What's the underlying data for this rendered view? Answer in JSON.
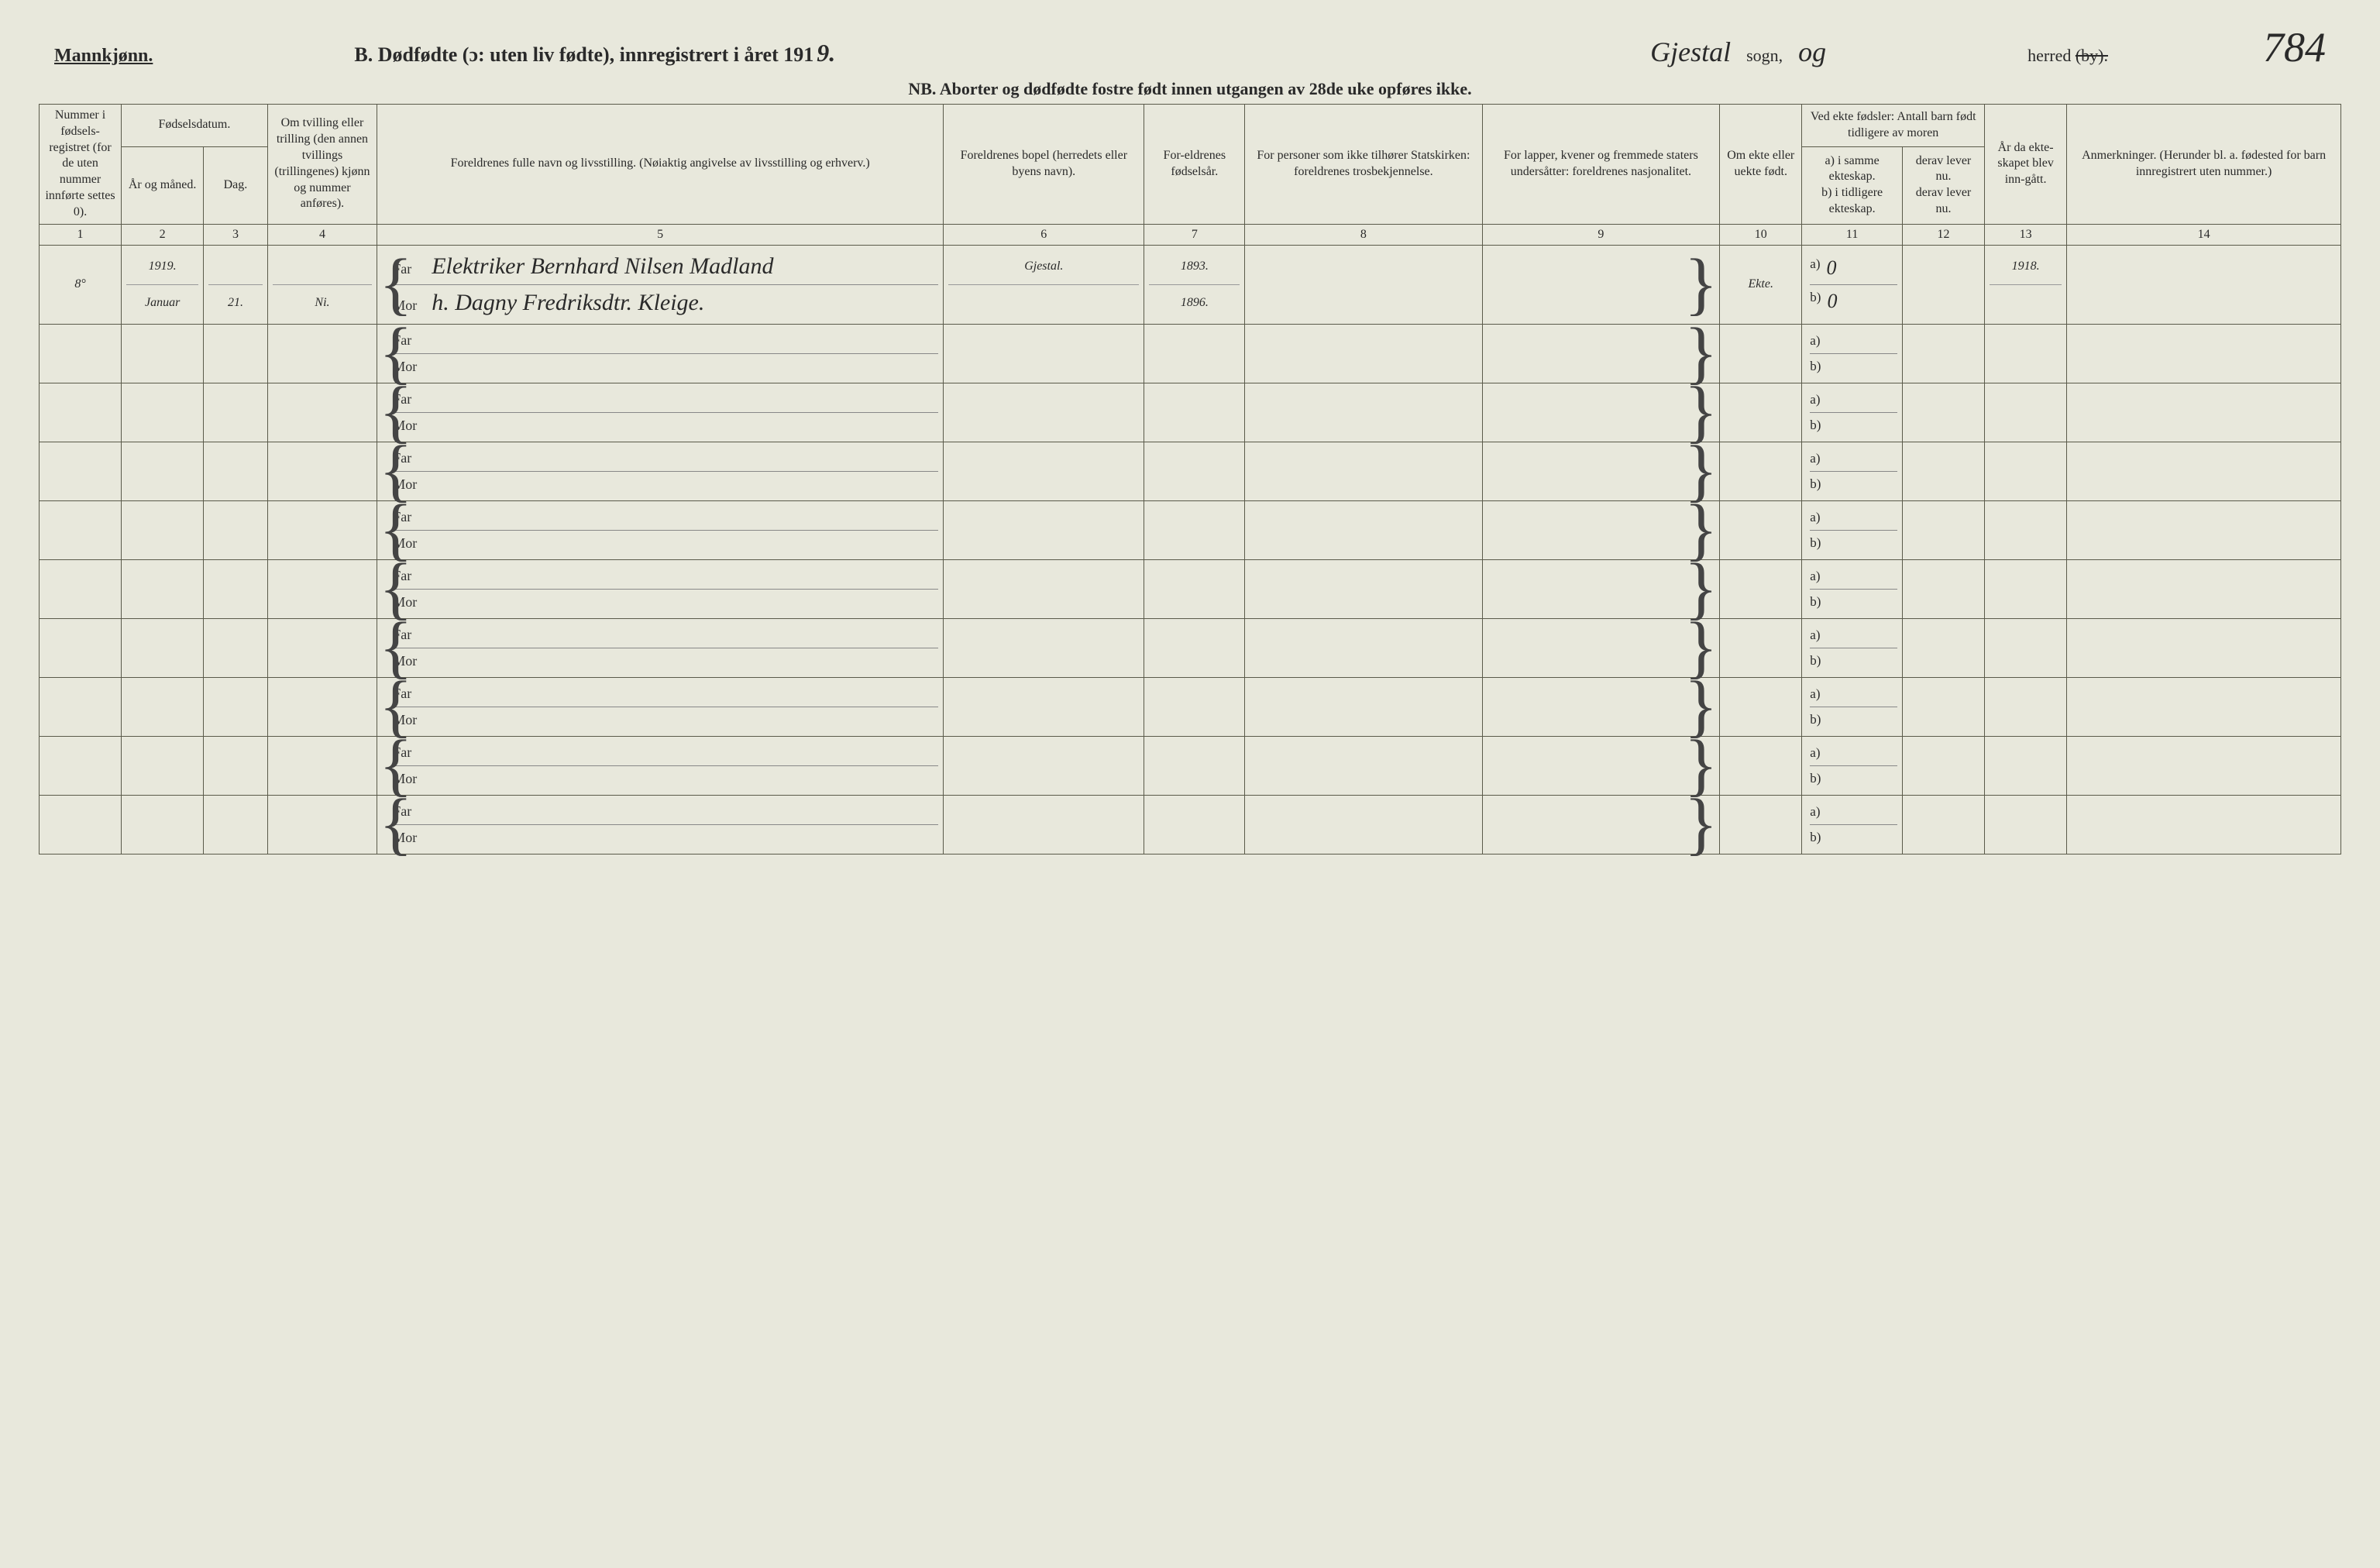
{
  "header": {
    "mannkjonn": "Mannkjønn.",
    "title": "B. Dødfødte (ɔ: uten liv fødte), innregistrert i året 191",
    "year_suffix": "9.",
    "sogn_hand": "Gjestal",
    "sogn_label": "sogn,",
    "og_hand": "og",
    "herred_label": "herred",
    "by_struck": "(by).",
    "page_number": "784",
    "nb": "NB. Aborter og dødfødte fostre født innen utgangen av 28de uke opføres ikke."
  },
  "columns": {
    "c1": "Nummer i fødsels-registret (for de uten nummer innførte settes 0).",
    "c2_group": "Fødselsdatum.",
    "c2a": "År og måned.",
    "c2b": "Dag.",
    "c3": "Om tvilling eller trilling (den annen tvillings (trillingenes) kjønn og nummer anføres).",
    "c4": "Foreldrenes fulle navn og livsstilling. (Nøiaktig angivelse av livsstilling og erhverv.)",
    "c5": "Foreldrenes bopel (herredets eller byens navn).",
    "c6": "For-eldrenes fødselsår.",
    "c7": "For personer som ikke tilhører Statskirken: foreldrenes trosbekjennelse.",
    "c8": "For lapper, kvener og fremmede staters undersåtter: foreldrenes nasjonalitet.",
    "c9": "Om ekte eller uekte født.",
    "c10_group": "Ved ekte fødsler: Antall barn født tidligere av moren",
    "c10a": "a) i samme ekteskap.",
    "c10b": "b) i tidligere ekteskap.",
    "c10c": "derav lever nu.",
    "c10d": "derav lever nu.",
    "c11": "År da ekte-skapet blev inn-gått.",
    "c12": "Anmerkninger. (Herunder bl. a. fødested for barn innregistrert uten nummer.)"
  },
  "colnums": [
    "1",
    "2",
    "3",
    "4",
    "5",
    "6",
    "7",
    "8",
    "9",
    "10",
    "11",
    "12",
    "13",
    "14"
  ],
  "row1": {
    "num": "8°",
    "year": "1919.",
    "month": "Januar",
    "day": "21.",
    "tvilling": "Ni.",
    "far_label": "Far",
    "mor_label": "Mor",
    "far_name": "Elektriker Bernhard Nilsen Madland",
    "mor_name": "h. Dagny Fredriksdtr. Kleige.",
    "bopel": "Gjestal.",
    "far_aar": "1893.",
    "mor_aar": "1896.",
    "ekte": "Ekte.",
    "a_val": "0",
    "b_val": "0",
    "ekteskap_aar": "1918."
  },
  "labels": {
    "far": "Far",
    "mor": "Mor",
    "a": "a)",
    "b": "b)"
  },
  "colors": {
    "paper": "#e8e8dc",
    "ink": "#2a2a2a",
    "rule": "#5a5a4a"
  }
}
